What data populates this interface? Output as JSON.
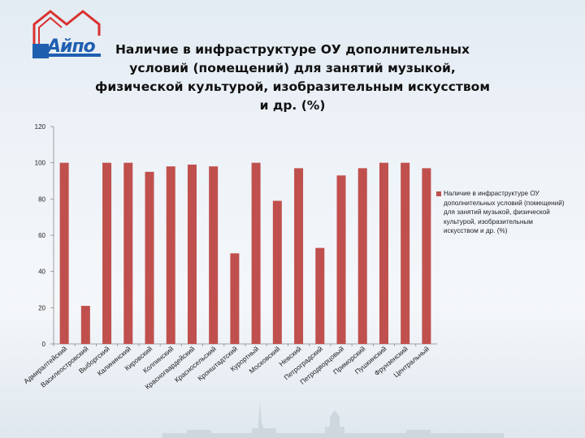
{
  "title": "Наличие в инфраструктуре ОУ дополнительных условий (помещений)  для занятий музыкой, физической культурой, изобразительным искусством и др. (%)",
  "logo_text": "Айпо",
  "colors": {
    "bar": "#c0504d",
    "logo": "#1f5fb0"
  },
  "chart_data": {
    "type": "bar",
    "title": "",
    "xlabel": "",
    "ylabel": "",
    "ylim": [
      0,
      120
    ],
    "yticks": [
      0,
      20,
      40,
      60,
      80,
      100,
      120
    ],
    "grid": false,
    "legend_position": "right",
    "categories": [
      "Адмиралтейский",
      "Василеостровский",
      "Выборгский",
      "Калининский",
      "Кировский",
      "Колпинский",
      "Красногвардейский",
      "Красносельский",
      "Кронштадтский",
      "Курортный",
      "Московский",
      "Невский",
      "Петроградский",
      "Петродворцовый",
      "Приморский",
      "Пушкинский",
      "Фрунзенский",
      "Центральный"
    ],
    "series": [
      {
        "name": "Наличие в инфраструктуре ОУ дополнительных условий (помещений)  для занятий музыкой, физической культурой, изобразительным искусством и др. (%)",
        "values": [
          100,
          21,
          100,
          100,
          95,
          98,
          99,
          98,
          50,
          100,
          79,
          97,
          53,
          93,
          97,
          100,
          100,
          97
        ]
      }
    ]
  }
}
